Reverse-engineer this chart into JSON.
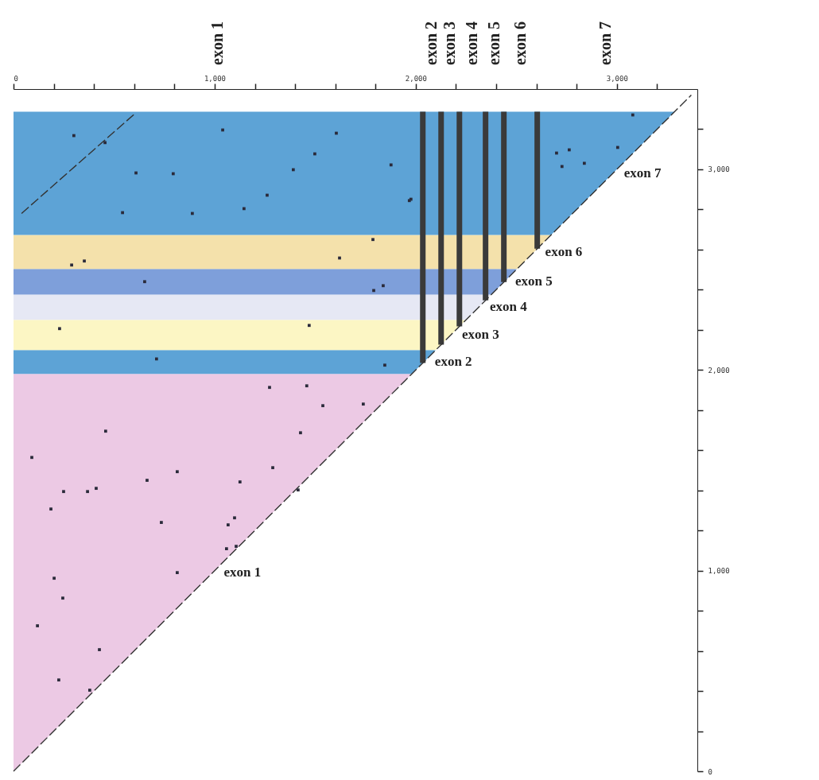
{
  "chart_data": {
    "type": "scatter",
    "xlim": [
      0,
      3400
    ],
    "ylim": [
      0,
      3400
    ],
    "xticks": [
      0,
      {
        "value": 200,
        "label": null
      },
      {
        "value": 400,
        "label": null
      },
      {
        "value": 600,
        "label": null
      },
      {
        "value": 800,
        "label": null
      },
      {
        "value": 1000,
        "label": "1,000"
      },
      {
        "value": 1200,
        "label": null
      },
      {
        "value": 1400,
        "label": null
      },
      {
        "value": 1600,
        "label": null
      },
      {
        "value": 1800,
        "label": null
      },
      {
        "value": 2000,
        "label": "2,000"
      },
      {
        "value": 2200,
        "label": null
      },
      {
        "value": 2400,
        "label": null
      },
      {
        "value": 2600,
        "label": null
      },
      {
        "value": 2800,
        "label": null
      },
      {
        "value": 3000,
        "label": "3,000"
      },
      {
        "value": 3200,
        "label": null
      }
    ],
    "yticks": [
      0,
      {
        "value": 200,
        "label": null
      },
      {
        "value": 400,
        "label": null
      },
      {
        "value": 600,
        "label": null
      },
      {
        "value": 800,
        "label": null
      },
      {
        "value": 1000,
        "label": "1,000"
      },
      {
        "value": 1200,
        "label": null
      },
      {
        "value": 1400,
        "label": null
      },
      {
        "value": 1600,
        "label": null
      },
      {
        "value": 1800,
        "label": null
      },
      {
        "value": 2000,
        "label": "2,000"
      },
      {
        "value": 2200,
        "label": null
      },
      {
        "value": 2400,
        "label": null
      },
      {
        "value": 2600,
        "label": null
      },
      {
        "value": 2800,
        "label": null
      },
      {
        "value": 3000,
        "label": "3,000"
      },
      {
        "value": 3200,
        "label": null
      }
    ],
    "grid": false,
    "line_style": "dashed",
    "bands": [
      {
        "axis": "y",
        "from": 0,
        "to": 1980,
        "label": "exon 1",
        "color": "#ecc9e4"
      },
      {
        "axis": "y",
        "from": 1980,
        "to": 2099,
        "label": "exon 2",
        "color": "#5da3d6"
      },
      {
        "axis": "y",
        "from": 2099,
        "to": 2250,
        "label": "exon 3",
        "color": "#fcf6c4"
      },
      {
        "axis": "y",
        "from": 2250,
        "to": 2376,
        "label": "exon 4",
        "color": "#e6e8f4"
      },
      {
        "axis": "y",
        "from": 2376,
        "to": 2503,
        "label": "exon 5",
        "color": "#7e9fda"
      },
      {
        "axis": "y",
        "from": 2503,
        "to": 2673,
        "label": "exon 6",
        "color": "#f4e1ab"
      },
      {
        "axis": "y",
        "from": 2673,
        "to": 3287,
        "label": "exon 7",
        "color": "#5da3d6"
      }
    ],
    "ref_lines": [
      {
        "axis": "x",
        "value": 2035,
        "color": "#3a3a3a"
      },
      {
        "axis": "x",
        "value": 2126,
        "color": "#3a3a3a"
      },
      {
        "axis": "x",
        "value": 2217,
        "color": "#3a3a3a"
      },
      {
        "axis": "x",
        "value": 2347,
        "color": "#3a3a3a"
      },
      {
        "axis": "x",
        "value": 2438,
        "color": "#3a3a3a"
      },
      {
        "axis": "x",
        "value": 2604,
        "color": "#3a3a3a"
      }
    ],
    "annotations": [
      "exon 1",
      "exon 2",
      "exon 3",
      "exon 4",
      "exon 5",
      "exon 6",
      "exon 7"
    ],
    "series": [
      {
        "type": "line",
        "color": "#333333",
        "x": [
          0,
          3370
        ],
        "values": [
          0,
          3370
        ]
      },
      {
        "type": "line",
        "color": "#333333",
        "x": [
          40,
          605
        ],
        "values": [
          2780,
          3279
        ]
      },
      {
        "marker": "square",
        "color": "#2a2a3a",
        "x": [
          300,
          455,
          609,
          794,
          1040,
          1498,
          1391,
          1261,
          1146,
          889,
          542,
          1605,
          1877,
          1968,
          1787,
          1621,
          352,
          289,
          652,
          1791,
          1838,
          1470,
          229,
          711,
          1846,
          1427,
          1458,
          1273,
          249,
          368,
          411,
          186,
          664,
          814,
          1126,
          1099,
          1067,
          1059,
          1107,
          1415,
          1289,
          1739,
          1538,
          814,
          202,
          245,
          119,
          427,
          225,
          379,
          91,
          458,
          735,
          2700,
          2763,
          2727,
          3004,
          3079,
          1976,
          2838
        ],
        "values": [
          3168,
          3133,
          2982,
          2978,
          3196,
          3077,
          2998,
          2871,
          2804,
          2780,
          2784,
          3180,
          3022,
          2844,
          2650,
          2558,
          2543,
          2523,
          2440,
          2396,
          2420,
          2222,
          2206,
          2055,
          2024,
          1687,
          1921,
          1913,
          1394,
          1394,
          1410,
          1307,
          1450,
          1493,
          1442,
          1263,
          1228,
          1109,
          1121,
          1402,
          1513,
          1830,
          1822,
          990,
          962,
          863,
          725,
          606,
          455,
          404,
          1564,
          1695,
          1240,
          3081,
          3097,
          3014,
          3109,
          3271,
          2851,
          3030
        ]
      }
    ]
  }
}
